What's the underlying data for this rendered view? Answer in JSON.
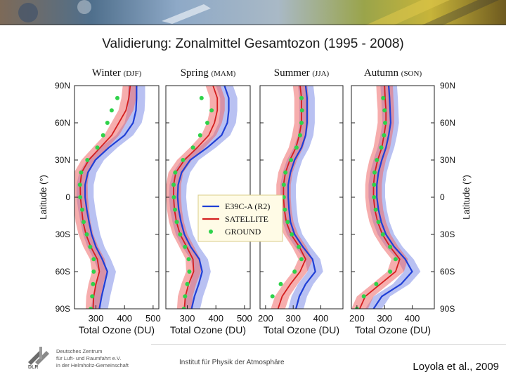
{
  "header": {
    "title": "Validierung: Zonalmittel Gesamtozon (1995 - 2008)"
  },
  "footer": {
    "institute": "Institut für Physik der Atmosphäre",
    "citation": "Loyola et al., 2009",
    "logo_lines": [
      "Deutsches Zentrum",
      "für Luft- und Raumfahrt e.V.",
      "in der Helmholtz-Gemeinschaft"
    ],
    "logo_abbrev": "DLR"
  },
  "colors": {
    "model": "#1f3fd6",
    "model_band": "#7f8ee8",
    "satellite": "#d41f1f",
    "satellite_band": "#ee6a6a",
    "ground": "#2fd24a"
  },
  "chart_data": {
    "type": "line",
    "title": "Validierung: Zonalmittel Gesamtozon (1995 - 2008)",
    "ylabel": "Latitude (°)",
    "xlabel": "Total Ozone (DU)",
    "ylim": [
      -90,
      90
    ],
    "yticks": [
      90,
      60,
      30,
      0,
      -30,
      -60,
      -90
    ],
    "ytick_labels": [
      "90N",
      "60N",
      "30N",
      "0",
      "30S",
      "60S",
      "90S"
    ],
    "legend": {
      "position": "center",
      "entries": [
        {
          "label": "E39C-A (R2)",
          "kind": "model"
        },
        {
          "label": "SATELLITE",
          "kind": "satellite"
        },
        {
          "label": "GROUND",
          "kind": "ground"
        }
      ]
    },
    "latitudes": [
      90,
      80,
      70,
      60,
      50,
      40,
      30,
      20,
      10,
      0,
      -10,
      -20,
      -30,
      -40,
      -50,
      -60,
      -70,
      -80,
      -90
    ],
    "panels": [
      {
        "name": "Winter",
        "season": "(DJF)",
        "xlim": [
          225,
          520
        ],
        "xticks": [
          300,
          400,
          500
        ],
        "xtick_labels": [
          "300",
          "400",
          "500"
        ],
        "model": [
          442,
          442,
          440,
          430,
          400,
          345,
          298,
          272,
          262,
          262,
          268,
          276,
          285,
          300,
          322,
          340,
          330,
          320,
          312
        ],
        "model_spread": 30,
        "satellite": [
          420,
          415,
          405,
          380,
          355,
          315,
          275,
          250,
          245,
          246,
          250,
          255,
          265,
          282,
          305,
          312,
          300,
          292,
          290
        ],
        "satellite_spread": 26,
        "ground": [
          null,
          375,
          355,
          340,
          325,
          305,
          270,
          248,
          244,
          245,
          252,
          257,
          268,
          280,
          292,
          292,
          290,
          287,
          282
        ]
      },
      {
        "name": "Spring",
        "season": "(MAM)",
        "xlim": [
          225,
          520
        ],
        "xticks": [
          300,
          400,
          500
        ],
        "xtick_labels": [
          "300",
          "400",
          "500"
        ],
        "model": [
          430,
          445,
          445,
          440,
          420,
          370,
          310,
          280,
          268,
          266,
          270,
          278,
          290,
          312,
          342,
          352,
          340,
          325,
          315
        ],
        "model_spread": 30,
        "satellite": [
          390,
          405,
          405,
          395,
          375,
          335,
          290,
          260,
          252,
          252,
          255,
          262,
          275,
          298,
          320,
          322,
          305,
          293,
          290
        ],
        "satellite_spread": 26,
        "ground": [
          null,
          350,
          385,
          370,
          345,
          320,
          285,
          258,
          252,
          253,
          257,
          263,
          275,
          292,
          305,
          307,
          300,
          292,
          288
        ]
      },
      {
        "name": "Summer",
        "season": "(JJA)",
        "xlim": [
          180,
          480
        ],
        "xticks": [
          200,
          300,
          400
        ],
        "xtick_labels": [
          "200",
          "300",
          "400"
        ],
        "model": [
          345,
          350,
          350,
          350,
          345,
          330,
          305,
          290,
          282,
          282,
          285,
          290,
          305,
          335,
          370,
          380,
          345,
          322,
          310
        ],
        "model_spread": 28,
        "satellite": [
          325,
          330,
          330,
          330,
          322,
          310,
          288,
          272,
          265,
          265,
          268,
          275,
          292,
          322,
          345,
          325,
          290,
          260,
          245
        ],
        "satellite_spread": 26,
        "ground": [
          null,
          330,
          332,
          330,
          325,
          312,
          292,
          272,
          266,
          266,
          270,
          280,
          295,
          320,
          330,
          305,
          255,
          225,
          null
        ]
      },
      {
        "name": "Autumn",
        "season": "(SON)",
        "xlim": [
          180,
          480
        ],
        "xticks": [
          200,
          300,
          400
        ],
        "xtick_labels": [
          "200",
          "300",
          "400"
        ],
        "model": [
          315,
          318,
          320,
          322,
          315,
          305,
          290,
          278,
          272,
          272,
          278,
          288,
          305,
          335,
          375,
          400,
          360,
          290,
          260
        ],
        "model_spread": 30,
        "satellite": [
          300,
          302,
          305,
          305,
          298,
          290,
          275,
          265,
          260,
          260,
          265,
          275,
          292,
          320,
          355,
          340,
          285,
          230,
          210
        ],
        "satellite_spread": 30,
        "ground": [
          null,
          295,
          300,
          302,
          298,
          288,
          272,
          264,
          262,
          262,
          268,
          278,
          294,
          320,
          340,
          320,
          270,
          225,
          200
        ]
      }
    ]
  }
}
